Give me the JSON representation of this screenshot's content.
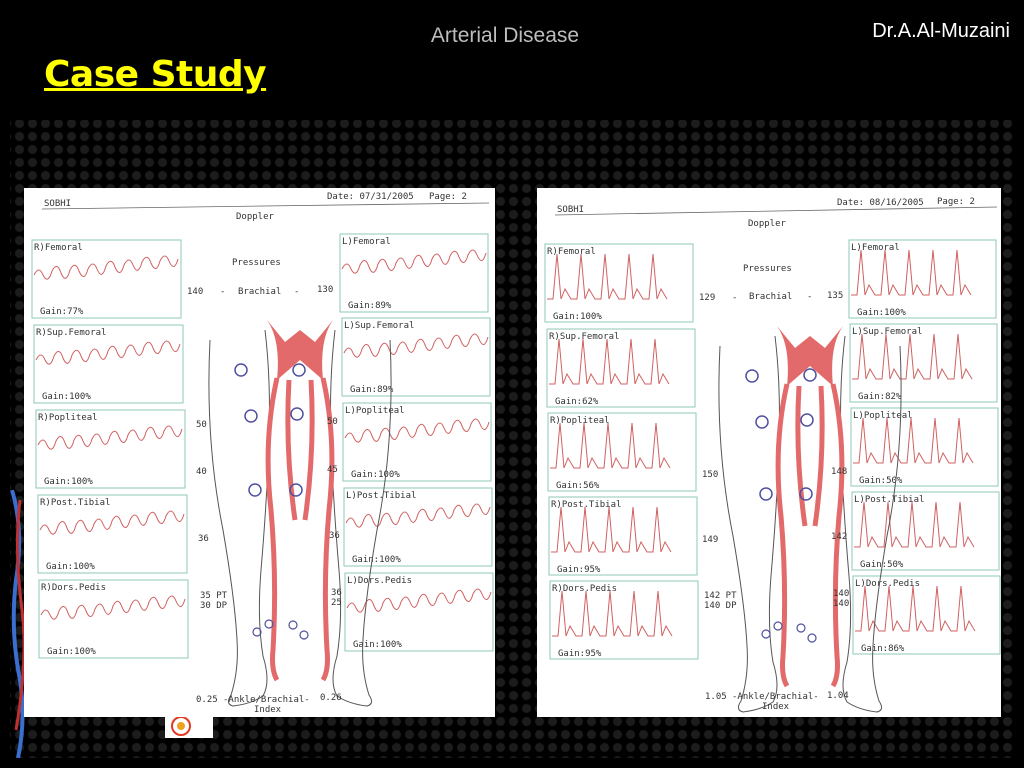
{
  "slide": {
    "topic": "Arterial Disease",
    "author": "Dr.A.Al-Muzaini",
    "title": "Case Study"
  },
  "colors": {
    "title": "#ffff00",
    "waveform": "#d06060",
    "artery": "#e36a6a",
    "grid": "#8fc8b8"
  },
  "reports": [
    {
      "patient": "SOBHI",
      "date": "Date: 07/31/2005",
      "page": "Page:  2",
      "test": "Doppler",
      "pressures_label": "Pressures",
      "brachial_label": "Brachial",
      "brachial_right": "140",
      "brachial_left": "130",
      "dash": "-",
      "right_panels": [
        {
          "label": "R)Femoral",
          "gain": "Gain:77%"
        },
        {
          "label": "R)Sup.Femoral",
          "gain": "Gain:100%"
        },
        {
          "label": "R)Popliteal",
          "gain": "Gain:100%"
        },
        {
          "label": "R)Post.Tibial",
          "gain": "Gain:100%"
        },
        {
          "label": "R)Dors.Pedis",
          "gain": "Gain:100%"
        }
      ],
      "left_panels": [
        {
          "label": "L)Femoral",
          "gain": "Gain:89%"
        },
        {
          "label": "L)Sup.Femoral",
          "gain": "Gain:89%"
        },
        {
          "label": "L)Popliteal",
          "gain": "Gain:100%"
        },
        {
          "label": "L)Post.Tibial",
          "gain": "Gain:100%"
        },
        {
          "label": "L)Dors.Pedis",
          "gain": "Gain:100%"
        }
      ],
      "right_pressures": [
        "50",
        "40",
        "36"
      ],
      "left_pressures": [
        "50",
        "45",
        "36"
      ],
      "ankle_right": [
        "35 PT",
        "30 DP"
      ],
      "ankle_left": [
        "36",
        "25"
      ],
      "abi_right": "0.25",
      "abi_left": "0.26",
      "abi_label": "-Ankle/Brachial-",
      "abi_index": "Index"
    },
    {
      "patient": "SOBHI",
      "date": "Date: 08/16/2005",
      "page": "Page:  2",
      "test": "Doppler",
      "pressures_label": "Pressures",
      "brachial_label": "Brachial",
      "brachial_right": "129",
      "brachial_left": "135",
      "dash": "-",
      "right_panels": [
        {
          "label": "R)Femoral",
          "gain": "Gain:100%"
        },
        {
          "label": "R)Sup.Femoral",
          "gain": "Gain:62%"
        },
        {
          "label": "R)Popliteal",
          "gain": "Gain:56%"
        },
        {
          "label": "R)Post.Tibial",
          "gain": "Gain:95%"
        },
        {
          "label": "R)Dors.Pedis",
          "gain": "Gain:95%"
        }
      ],
      "left_panels": [
        {
          "label": "L)Femoral",
          "gain": "Gain:100%"
        },
        {
          "label": "L)Sup.Femoral",
          "gain": "Gain:82%"
        },
        {
          "label": "L)Popliteal",
          "gain": "Gain:50%"
        },
        {
          "label": "L)Post.Tibial",
          "gain": "Gain:50%"
        },
        {
          "label": "L)Dors.Pedis",
          "gain": "Gain:86%"
        }
      ],
      "right_pressures": [
        "150",
        "149"
      ],
      "left_pressures": [
        "148",
        "142"
      ],
      "ankle_right": [
        "142 PT",
        "140 DP"
      ],
      "ankle_left": [
        "140",
        "140"
      ],
      "abi_right": "1.05",
      "abi_left": "1.04",
      "abi_label": "-Ankle/Brachial-",
      "abi_index": "Index"
    }
  ]
}
